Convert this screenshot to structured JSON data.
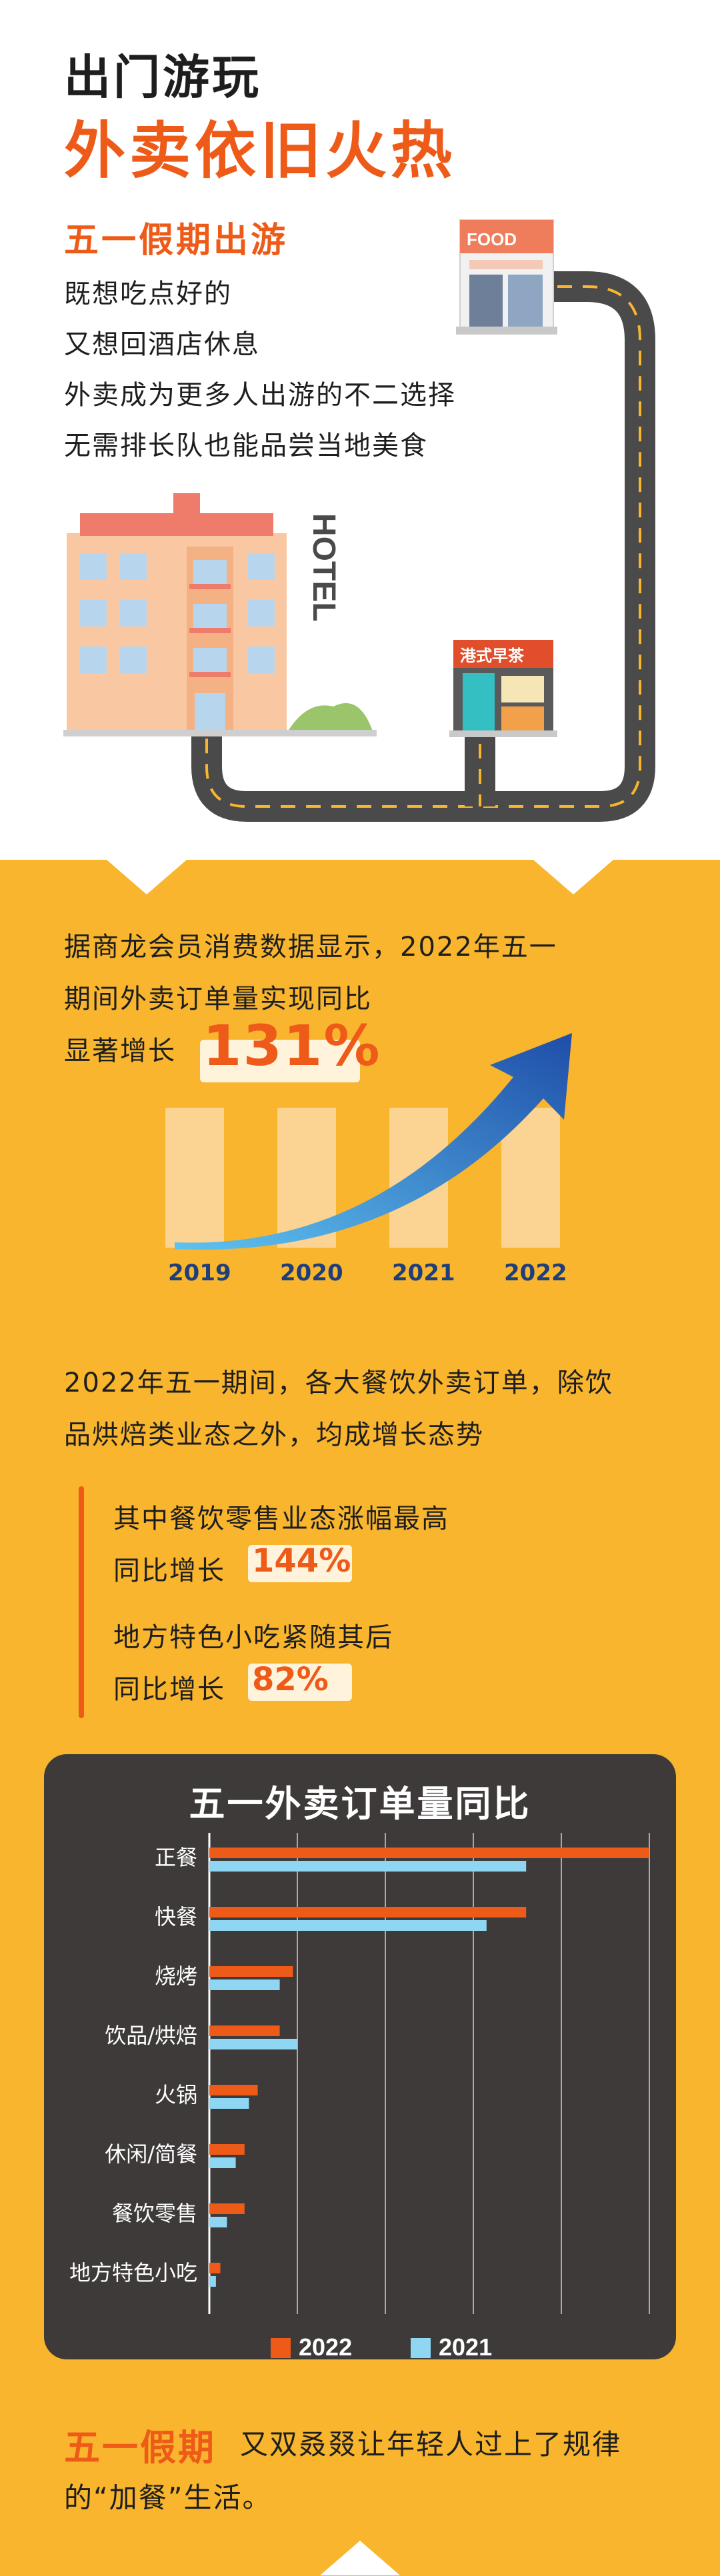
{
  "header": {
    "title_line1": "出门游玩",
    "title_line2": "外卖依旧火热",
    "subtitle": "五一假期出游",
    "intro_lines": [
      "既想吃点好的",
      "又想回酒店休息",
      "外卖成为更多人出游的不二选择",
      "无需排长队也能品尝当地美食"
    ]
  },
  "illustration": {
    "hotel_label": "HOTEL",
    "food_sign": "FOOD",
    "teahouse_sign": "港式早茶"
  },
  "growth": {
    "line1": "据商龙会员消费数据显示，2022年五一",
    "line2": "期间外卖订单量实现同比",
    "line3": "显著增长",
    "value": "131%",
    "years": [
      "2019",
      "2020",
      "2021",
      "2022"
    ]
  },
  "summary": {
    "line1": "2022年五一期间，各大餐饮外卖订单，除饮",
    "line2": "品烘焙类业态之外，均成增长态势",
    "point1_line1": "其中餐饮零售业态涨幅最高",
    "point1_line2": "同比增长",
    "point1_value": "144%",
    "point2_line1": "地方特色小吃紧随其后",
    "point2_line2": "同比增长",
    "point2_value": "82%"
  },
  "colors": {
    "orange": "#ee5a18",
    "yellow": "#f8b52d",
    "dark": "#3e3a39",
    "light_blue": "#8fd6f2",
    "navy": "#1e3f7a"
  },
  "chart_data": {
    "type": "bar",
    "orientation": "horizontal",
    "title": "五一外卖订单量同比",
    "categories": [
      "正餐",
      "快餐",
      "烧烤",
      "饮品/烘焙",
      "火锅",
      "休闲/简餐",
      "餐饮零售",
      "地方特色小吃"
    ],
    "series": [
      {
        "name": "2022",
        "color": "#ee5a18",
        "values": [
          100,
          72,
          19,
          16,
          11,
          8,
          8,
          2.5
        ]
      },
      {
        "name": "2021",
        "color": "#8fd6f2",
        "values": [
          72,
          63,
          16,
          20,
          9,
          6,
          4,
          1.5
        ]
      }
    ],
    "xlim": [
      0,
      100
    ],
    "grid": true,
    "legend": "bottom"
  },
  "closing": {
    "highlight": "五一假期",
    "line1_rest": "又双叒叕让年轻人过上了规律",
    "line2": "的“加餐”生活。"
  }
}
